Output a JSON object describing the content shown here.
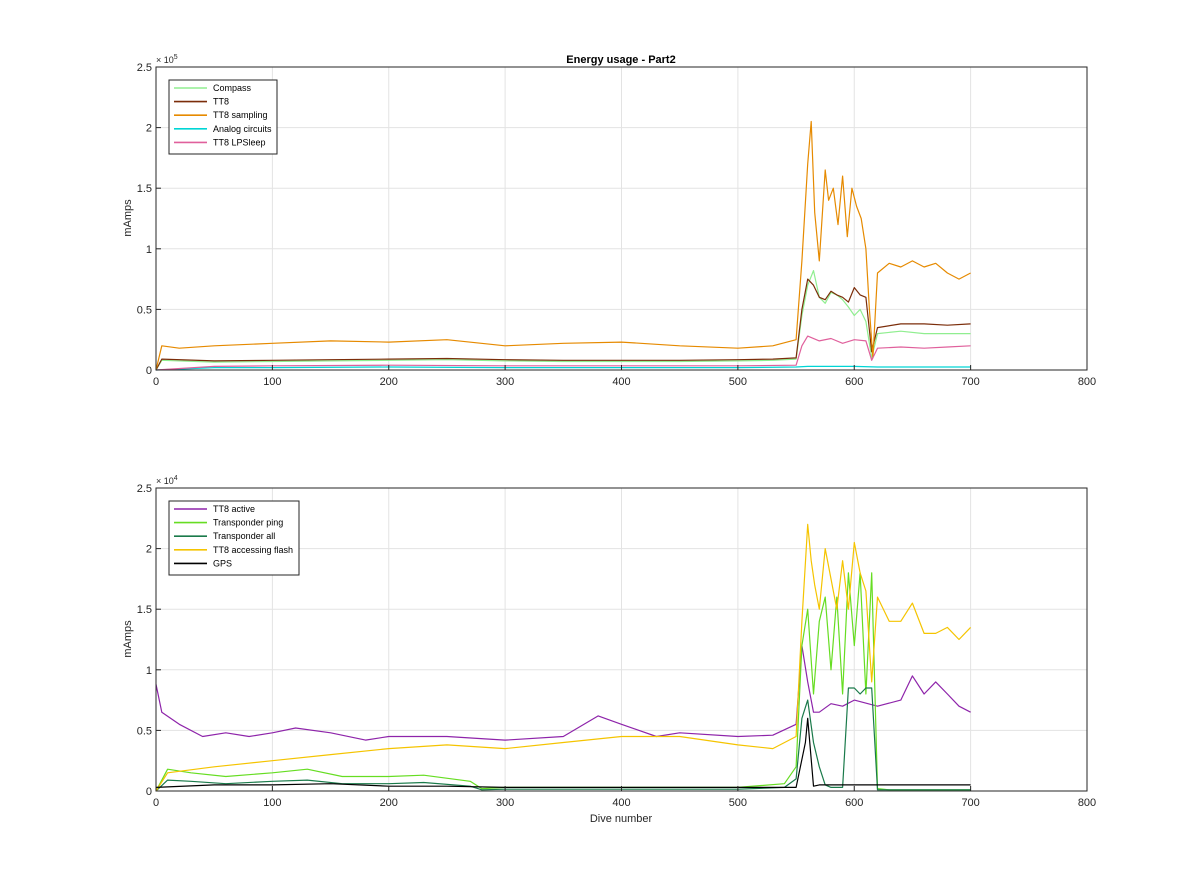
{
  "figure": {
    "title": "Energy usage - Part2"
  },
  "chart_data": [
    {
      "type": "line",
      "title": "Energy usage - Part2",
      "xlabel": "",
      "ylabel": "mAmps",
      "xlim": [
        0,
        800
      ],
      "ylim": [
        0,
        250000
      ],
      "x_ticks": [
        0,
        100,
        200,
        300,
        400,
        500,
        600,
        700,
        800
      ],
      "y_ticks": [
        0,
        50000,
        100000,
        150000,
        200000,
        250000
      ],
      "y_tick_labels": [
        "0",
        "0.5",
        "1",
        "1.5",
        "2",
        "2.5"
      ],
      "y_exponent_base": "× 10",
      "y_exponent": "5",
      "grid": true,
      "legend_position": "top-left",
      "series": [
        {
          "name": "Compass",
          "color": "#90ee90",
          "x": [
            0,
            5,
            50,
            100,
            150,
            200,
            250,
            300,
            350,
            400,
            450,
            500,
            530,
            550,
            555,
            560,
            565,
            570,
            575,
            580,
            585,
            590,
            595,
            600,
            605,
            610,
            615,
            620,
            640,
            660,
            680,
            700
          ],
          "y": [
            0,
            8000,
            6500,
            7000,
            7500,
            8000,
            8500,
            7500,
            7000,
            7000,
            7000,
            7500,
            8000,
            9000,
            45000,
            70000,
            82000,
            60000,
            55000,
            64000,
            62000,
            58000,
            52000,
            45000,
            50000,
            40000,
            10000,
            30000,
            32000,
            30000,
            30000,
            30000
          ]
        },
        {
          "name": "TT8",
          "color": "#7b2d0a",
          "x": [
            0,
            5,
            50,
            100,
            150,
            200,
            250,
            300,
            350,
            400,
            450,
            500,
            530,
            550,
            555,
            560,
            565,
            570,
            575,
            580,
            585,
            590,
            595,
            600,
            605,
            610,
            615,
            620,
            640,
            660,
            680,
            700
          ],
          "y": [
            0,
            9000,
            7500,
            8000,
            8500,
            9000,
            9500,
            8500,
            8000,
            8000,
            8000,
            8500,
            9000,
            10000,
            50000,
            75000,
            70000,
            60000,
            58000,
            65000,
            62000,
            60000,
            56000,
            68000,
            62000,
            60000,
            15000,
            35000,
            38000,
            38000,
            37000,
            38000
          ]
        },
        {
          "name": "TT8 sampling",
          "color": "#e68a00",
          "x": [
            0,
            5,
            20,
            50,
            100,
            150,
            200,
            250,
            300,
            350,
            400,
            450,
            500,
            530,
            550,
            555,
            560,
            563,
            566,
            570,
            575,
            578,
            582,
            586,
            590,
            594,
            598,
            602,
            606,
            610,
            613,
            616,
            620,
            630,
            640,
            650,
            660,
            670,
            680,
            690,
            700
          ],
          "y": [
            0,
            20000,
            18000,
            20000,
            22000,
            24000,
            23000,
            25000,
            20000,
            22000,
            23000,
            20000,
            18000,
            20000,
            25000,
            90000,
            170000,
            205000,
            130000,
            90000,
            165000,
            140000,
            150000,
            120000,
            160000,
            110000,
            150000,
            135000,
            125000,
            100000,
            50000,
            10000,
            80000,
            88000,
            85000,
            90000,
            85000,
            88000,
            80000,
            75000,
            80000
          ]
        },
        {
          "name": "Analog circuits",
          "color": "#00d5d5",
          "x": [
            0,
            50,
            100,
            200,
            300,
            400,
            500,
            550,
            560,
            600,
            620,
            700
          ],
          "y": [
            0,
            2000,
            2000,
            2500,
            2000,
            2000,
            2000,
            2500,
            3000,
            3000,
            2500,
            2500
          ]
        },
        {
          "name": "TT8 LPSleep",
          "color": "#e0609c",
          "x": [
            0,
            50,
            100,
            200,
            300,
            400,
            500,
            550,
            555,
            560,
            570,
            580,
            590,
            600,
            610,
            615,
            620,
            640,
            660,
            680,
            700
          ],
          "y": [
            0,
            3000,
            3500,
            4000,
            3500,
            3500,
            3500,
            4000,
            20000,
            28000,
            24000,
            26000,
            22000,
            25000,
            24000,
            8000,
            18000,
            19000,
            18000,
            19000,
            20000
          ]
        }
      ]
    },
    {
      "type": "line",
      "title": "",
      "xlabel": "Dive number",
      "ylabel": "mAmps",
      "xlim": [
        0,
        800
      ],
      "ylim": [
        0,
        25000
      ],
      "x_ticks": [
        0,
        100,
        200,
        300,
        400,
        500,
        600,
        700,
        800
      ],
      "y_ticks": [
        0,
        5000,
        10000,
        15000,
        20000,
        25000
      ],
      "y_tick_labels": [
        "0",
        "0.5",
        "1",
        "1.5",
        "2",
        "2.5"
      ],
      "y_exponent_base": "× 10",
      "y_exponent": "4",
      "grid": true,
      "legend_position": "top-left",
      "series": [
        {
          "name": "TT8 active",
          "color": "#8e24aa",
          "x": [
            0,
            5,
            20,
            40,
            60,
            80,
            100,
            120,
            150,
            180,
            200,
            250,
            300,
            350,
            380,
            400,
            430,
            450,
            500,
            530,
            550,
            555,
            560,
            565,
            570,
            580,
            590,
            600,
            620,
            640,
            650,
            660,
            670,
            680,
            690,
            700
          ],
          "y": [
            8800,
            6500,
            5500,
            4500,
            4800,
            4500,
            4800,
            5200,
            4800,
            4200,
            4500,
            4500,
            4200,
            4500,
            6200,
            5500,
            4500,
            4800,
            4500,
            4600,
            5500,
            12000,
            9000,
            6500,
            6500,
            7200,
            7000,
            7500,
            7000,
            7500,
            9500,
            8000,
            9000,
            8000,
            7000,
            6500
          ]
        },
        {
          "name": "Transponder ping",
          "color": "#66dd22",
          "x": [
            0,
            10,
            30,
            60,
            100,
            130,
            160,
            200,
            230,
            270,
            280,
            300,
            400,
            500,
            540,
            550,
            555,
            560,
            565,
            570,
            575,
            580,
            585,
            590,
            595,
            600,
            605,
            610,
            615,
            620,
            630,
            700
          ],
          "y": [
            0,
            1800,
            1500,
            1200,
            1500,
            1800,
            1200,
            1200,
            1300,
            800,
            200,
            300,
            300,
            300,
            600,
            2000,
            12000,
            15000,
            8000,
            14000,
            16000,
            10000,
            16000,
            8000,
            18000,
            12000,
            18000,
            8000,
            18000,
            200,
            100,
            100
          ]
        },
        {
          "name": "Transponder all",
          "color": "#1a7a4a",
          "x": [
            0,
            10,
            30,
            60,
            100,
            130,
            160,
            200,
            230,
            270,
            280,
            300,
            400,
            500,
            540,
            550,
            555,
            560,
            565,
            570,
            575,
            580,
            590,
            595,
            600,
            605,
            610,
            615,
            620,
            630,
            700
          ],
          "y": [
            0,
            900,
            800,
            600,
            800,
            900,
            600,
            600,
            700,
            400,
            100,
            150,
            150,
            150,
            300,
            1000,
            6000,
            7500,
            4000,
            2000,
            500,
            300,
            300,
            8500,
            8500,
            8000,
            8500,
            8500,
            100,
            100,
            100
          ]
        },
        {
          "name": "TT8 accessing flash",
          "color": "#f5c400",
          "x": [
            0,
            10,
            50,
            100,
            150,
            200,
            250,
            300,
            350,
            400,
            450,
            500,
            530,
            550,
            555,
            560,
            563,
            566,
            570,
            575,
            580,
            585,
            590,
            595,
            600,
            605,
            610,
            615,
            620,
            630,
            640,
            650,
            660,
            670,
            680,
            690,
            700
          ],
          "y": [
            0,
            1500,
            2000,
            2500,
            3000,
            3500,
            3800,
            3500,
            4000,
            4500,
            4500,
            3800,
            3500,
            4500,
            14000,
            22000,
            19000,
            17000,
            15000,
            20000,
            17500,
            15000,
            19000,
            15000,
            20500,
            18000,
            16500,
            9000,
            16000,
            14000,
            14000,
            15500,
            13000,
            13000,
            13500,
            12500,
            13500
          ]
        },
        {
          "name": "GPS",
          "color": "#000000",
          "x": [
            0,
            50,
            100,
            150,
            200,
            250,
            300,
            400,
            500,
            550,
            558,
            560,
            565,
            570,
            600,
            650,
            700
          ],
          "y": [
            300,
            500,
            500,
            600,
            400,
            400,
            300,
            300,
            300,
            300,
            4000,
            6000,
            400,
            500,
            500,
            500,
            500
          ]
        }
      ]
    }
  ]
}
